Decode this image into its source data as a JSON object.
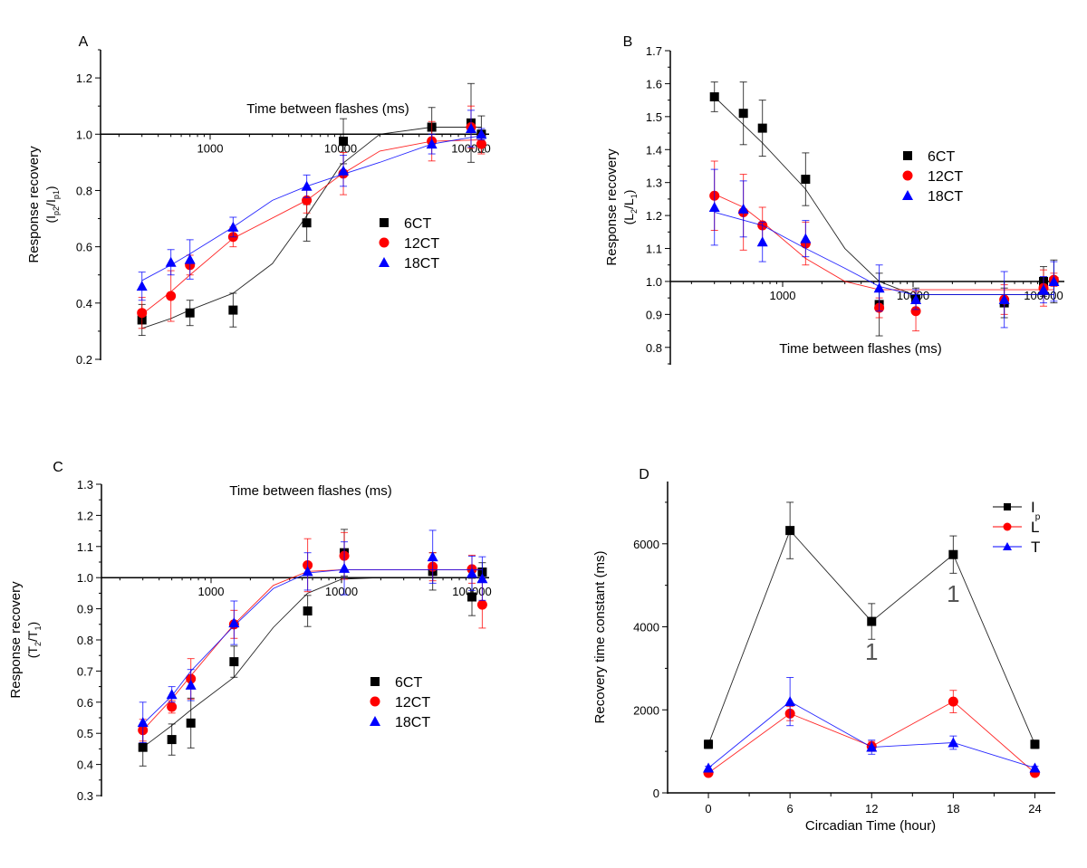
{
  "colors": {
    "6CT": "#000000",
    "12CT": "#ff0000",
    "18CT": "#0000ff",
    "Ip": "#000000",
    "L": "#ff0000",
    "T": "#0000ff"
  },
  "chart_data": [
    {
      "panel": "A",
      "type": "scatter",
      "xscale": "log",
      "xlabel": "Time between flashes (ms)",
      "ylabel": "Response recovery",
      "ylabel2": "(I_p2/I_p1)",
      "ylim": [
        0.2,
        1.3
      ],
      "yticks": [
        0.2,
        0.4,
        0.6,
        0.8,
        1.0,
        1.2
      ],
      "xlim": [
        100,
        150000
      ],
      "xticks": [
        1000,
        10000,
        100000
      ],
      "x_axis_crosses_at": 1.0,
      "xlabel_position": "top",
      "legend": [
        "6CT",
        "12CT",
        "18CT"
      ],
      "legend_placement": "center-right",
      "x": [
        300,
        500,
        700,
        1500,
        5500,
        10500,
        50000,
        100000,
        120000
      ],
      "series": [
        {
          "name": "6CT",
          "marker": "square",
          "values": [
            0.34,
            null,
            0.365,
            0.375,
            0.685,
            0.975,
            1.025,
            1.04,
            1.0
          ],
          "err": [
            0.055,
            null,
            0.045,
            0.06,
            0.065,
            0.08,
            0.07,
            0.14,
            0.065
          ],
          "fit": [
            [
              300,
              0.31
            ],
            [
              500,
              0.345
            ],
            [
              700,
              0.375
            ],
            [
              1500,
              0.435
            ],
            [
              3000,
              0.54
            ],
            [
              5500,
              0.71
            ],
            [
              10000,
              0.89
            ],
            [
              20000,
              1.0
            ],
            [
              50000,
              1.025
            ],
            [
              120000,
              1.025
            ]
          ]
        },
        {
          "name": "12CT",
          "marker": "circle",
          "values": [
            0.365,
            0.425,
            0.535,
            0.635,
            0.765,
            0.86,
            0.975,
            1.025,
            0.965
          ],
          "err": [
            0.055,
            0.09,
            0.035,
            0.035,
            0.045,
            0.075,
            0.07,
            0.075,
            0.035
          ],
          "fit": [
            [
              300,
              0.36
            ],
            [
              500,
              0.44
            ],
            [
              700,
              0.5
            ],
            [
              1500,
              0.63
            ],
            [
              5500,
              0.765
            ],
            [
              10000,
              0.855
            ],
            [
              20000,
              0.94
            ],
            [
              50000,
              0.975
            ],
            [
              120000,
              0.98
            ]
          ]
        },
        {
          "name": "18CT",
          "marker": "triangle",
          "values": [
            0.46,
            0.545,
            0.555,
            0.67,
            0.815,
            0.87,
            0.965,
            1.02,
            1.0
          ],
          "err": [
            0.05,
            0.045,
            0.07,
            0.035,
            0.04,
            0.055,
            0.035,
            0.065,
            0.02
          ],
          "fit": [
            [
              300,
              0.48
            ],
            [
              500,
              0.535
            ],
            [
              700,
              0.575
            ],
            [
              1500,
              0.67
            ],
            [
              3000,
              0.765
            ],
            [
              5500,
              0.815
            ],
            [
              10000,
              0.855
            ],
            [
              20000,
              0.9
            ],
            [
              50000,
              0.965
            ],
            [
              120000,
              0.995
            ]
          ]
        }
      ]
    },
    {
      "panel": "B",
      "type": "scatter",
      "xscale": "log",
      "xlabel": "Time between flashes (ms)",
      "ylabel": "Response recovery",
      "ylabel2": "(L_2/L_1)",
      "ylim": [
        0.75,
        1.7
      ],
      "yticks": [
        0.8,
        0.9,
        1.0,
        1.1,
        1.2,
        1.3,
        1.4,
        1.5,
        1.6,
        1.7
      ],
      "xlim": [
        100,
        150000
      ],
      "xticks": [
        1000,
        10000,
        100000
      ],
      "x_axis_crosses_at": 1.0,
      "xlabel_position": "bottom",
      "legend": [
        "6CT",
        "12CT",
        "18CT"
      ],
      "legend_placement": "top-right",
      "x": [
        300,
        500,
        700,
        1500,
        5500,
        10500,
        50000,
        100000,
        120000
      ],
      "series": [
        {
          "name": "6CT",
          "marker": "square",
          "values": [
            1.56,
            1.51,
            1.465,
            1.31,
            0.93,
            0.945,
            0.935,
            1.0,
            1.0
          ],
          "err": [
            0.045,
            0.095,
            0.085,
            0.08,
            0.095,
            0.035,
            0.045,
            0.045,
            0.065
          ],
          "fit": [
            [
              300,
              1.56
            ],
            [
              700,
              1.42
            ],
            [
              1500,
              1.28
            ],
            [
              3000,
              1.1
            ],
            [
              5500,
              1.0
            ],
            [
              10000,
              0.96
            ],
            [
              50000,
              0.96
            ],
            [
              120000,
              0.96
            ]
          ]
        },
        {
          "name": "12CT",
          "marker": "circle",
          "values": [
            1.26,
            1.21,
            1.17,
            1.115,
            0.92,
            0.91,
            0.945,
            0.98,
            1.005
          ],
          "err": [
            0.105,
            0.115,
            0.055,
            0.065,
            0.03,
            0.06,
            0.045,
            0.055,
            0.02
          ],
          "fit": [
            [
              300,
              1.265
            ],
            [
              500,
              1.225
            ],
            [
              700,
              1.18
            ],
            [
              1500,
              1.07
            ],
            [
              3000,
              1.0
            ],
            [
              5500,
              0.975
            ],
            [
              10000,
              0.975
            ],
            [
              120000,
              0.975
            ]
          ]
        },
        {
          "name": "18CT",
          "marker": "triangle",
          "values": [
            1.225,
            1.22,
            1.12,
            1.13,
            0.98,
            0.945,
            0.945,
            0.975,
            1.0
          ],
          "err": [
            0.115,
            0.085,
            0.06,
            0.055,
            0.07,
            0.03,
            0.085,
            0.04,
            0.06
          ],
          "fit": [
            [
              300,
              1.21
            ],
            [
              700,
              1.17
            ],
            [
              1500,
              1.1
            ],
            [
              3000,
              1.04
            ],
            [
              5500,
              0.985
            ],
            [
              10000,
              0.96
            ],
            [
              120000,
              0.96
            ]
          ]
        }
      ]
    },
    {
      "panel": "C",
      "type": "scatter",
      "xscale": "log",
      "xlabel": "Time between flashes (ms)",
      "ylabel": "Response recovery",
      "ylabel2": "(T_2/T_1)",
      "ylim": [
        0.3,
        1.3
      ],
      "yticks": [
        0.3,
        0.4,
        0.5,
        0.6,
        0.7,
        0.8,
        0.9,
        1.0,
        1.1,
        1.2,
        1.3
      ],
      "xlim": [
        100,
        150000
      ],
      "xticks": [
        1000,
        10000,
        100000
      ],
      "x_axis_crosses_at": 1.0,
      "xlabel_position": "top",
      "legend": [
        "6CT",
        "12CT",
        "18CT"
      ],
      "legend_placement": "center-right",
      "x": [
        300,
        500,
        700,
        1500,
        5500,
        10500,
        50000,
        100000,
        120000
      ],
      "series": [
        {
          "name": "6CT",
          "marker": "square",
          "values": [
            0.455,
            0.48,
            0.533,
            0.73,
            0.893,
            1.08,
            1.02,
            0.938,
            1.018
          ],
          "err": [
            0.06,
            0.05,
            0.08,
            0.05,
            0.05,
            0.075,
            0.06,
            0.06,
            0.03
          ],
          "fit": [
            [
              300,
              0.455
            ],
            [
              500,
              0.525
            ],
            [
              700,
              0.575
            ],
            [
              1500,
              0.68
            ],
            [
              3000,
              0.84
            ],
            [
              5500,
              0.95
            ],
            [
              10000,
              0.995
            ],
            [
              20000,
              1.0
            ],
            [
              120000,
              1.0
            ]
          ]
        },
        {
          "name": "12CT",
          "marker": "circle",
          "values": [
            0.51,
            0.585,
            0.675,
            0.85,
            1.04,
            1.07,
            1.035,
            1.027,
            0.913
          ],
          "err": [
            0.035,
            0.02,
            0.065,
            0.045,
            0.085,
            0.075,
            0.045,
            0.045,
            0.075
          ],
          "fit": [
            [
              300,
              0.51
            ],
            [
              500,
              0.61
            ],
            [
              700,
              0.685
            ],
            [
              1500,
              0.85
            ],
            [
              3000,
              0.975
            ],
            [
              5500,
              1.02
            ],
            [
              10000,
              1.025
            ],
            [
              120000,
              1.025
            ]
          ]
        },
        {
          "name": "18CT",
          "marker": "triangle",
          "values": [
            0.535,
            0.625,
            0.655,
            0.855,
            1.02,
            1.03,
            1.067,
            1.014,
            0.997
          ],
          "err": [
            0.065,
            0.025,
            0.05,
            0.07,
            0.06,
            0.085,
            0.085,
            0.055,
            0.07
          ],
          "fit": [
            [
              300,
              0.53
            ],
            [
              500,
              0.62
            ],
            [
              700,
              0.7
            ],
            [
              1500,
              0.845
            ],
            [
              3000,
              0.965
            ],
            [
              5500,
              1.015
            ],
            [
              10000,
              1.025
            ],
            [
              120000,
              1.025
            ]
          ]
        }
      ]
    },
    {
      "panel": "D",
      "type": "line",
      "xlabel": "Circadian Time (hour)",
      "ylabel": "Recovery time constant (ms)",
      "xlim": [
        -3,
        25.5
      ],
      "ylim": [
        0,
        7500
      ],
      "xticks": [
        0,
        6,
        12,
        18,
        24
      ],
      "yticks": [
        0,
        2000,
        4000,
        6000
      ],
      "legend": [
        "I_p",
        "L",
        "T"
      ],
      "legend_placement": "top-right",
      "x": [
        0,
        6,
        12,
        18,
        24
      ],
      "series": [
        {
          "name": "Ip",
          "label": "I",
          "sub": "p",
          "marker": "square",
          "values": [
            1170,
            6320,
            4130,
            5740,
            1170
          ],
          "err": [
            100,
            680,
            430,
            450,
            100
          ]
        },
        {
          "name": "L",
          "label": "L",
          "sub": "",
          "marker": "circle",
          "values": [
            480,
            1910,
            1120,
            2200,
            480
          ],
          "err": [
            30,
            170,
            120,
            270,
            30
          ]
        },
        {
          "name": "T",
          "label": "T",
          "sub": "",
          "marker": "triangle",
          "values": [
            600,
            2200,
            1100,
            1210,
            600
          ],
          "err": [
            40,
            580,
            170,
            160,
            40
          ]
        }
      ],
      "annotations": [
        {
          "text": "1",
          "x": 12,
          "y": 3200
        },
        {
          "text": "1",
          "x": 18,
          "y": 4600
        }
      ]
    }
  ]
}
